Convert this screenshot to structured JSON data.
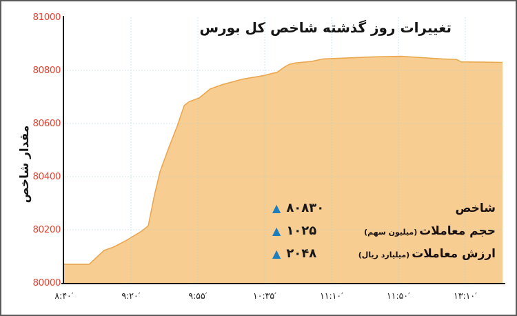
{
  "title": "تغییرات روز گذشته شاخص کل بورس",
  "y_axis": {
    "label": "مقدار شاخص",
    "ticks": [
      "81000",
      "80800",
      "80600",
      "80400",
      "80200",
      "80000"
    ]
  },
  "x_axis": {
    "ticks": [
      {
        "label": "۸:۴۰′",
        "time": "8:40",
        "pos": 0.0
      },
      {
        "label": "۹:۲۰′",
        "time": "9:20",
        "pos": 0.1525
      },
      {
        "label": "۹:۵۵′",
        "time": "9:55",
        "pos": 0.305
      },
      {
        "label": "۱۰:۳۵′",
        "time": "10:35",
        "pos": 0.4575
      },
      {
        "label": "۱۱:۱۰′",
        "time": "11:10",
        "pos": 0.6101
      },
      {
        "label": "۱۱:۵۰′",
        "time": "11:50",
        "pos": 0.7626
      },
      {
        "label": "۱۳:۱۰′",
        "time": "13:10",
        "pos": 0.9151
      }
    ]
  },
  "legend": {
    "rows": [
      {
        "label": "شاخص",
        "unit": "",
        "value": "۸۰۸۳۰",
        "value_reading": 80830,
        "direction": "up"
      },
      {
        "label": "حجم معاملات",
        "unit": "(میلیون سهم)",
        "value": "۱۰۲۵",
        "value_reading": 1025,
        "direction": "up"
      },
      {
        "label": "ارزش معاملات",
        "unit": "(میلیارد ریال)",
        "value": "۲۰۴۸",
        "value_reading": 2048,
        "direction": "up"
      }
    ]
  },
  "chart_data": {
    "type": "area",
    "title": "تغییرات روز گذشته شاخص کل بورس",
    "xlabel": "",
    "ylabel": "مقدار شاخص",
    "ylim": [
      80000,
      81000
    ],
    "yticks": [
      80000,
      80200,
      80400,
      80600,
      80800,
      81000
    ],
    "xtick_labels": [
      "۸:۴۰′",
      "۹:۲۰′",
      "۹:۵۵′",
      "۱۰:۳۵′",
      "۱۱:۱۰′",
      "۱۱:۵۰′",
      "۱۳:۱۰′"
    ],
    "xtick_times": [
      "8:40",
      "9:20",
      "9:55",
      "10:35",
      "11:10",
      "11:50",
      "13:10"
    ],
    "xtick_pos": [
      0.0,
      0.1525,
      0.305,
      0.4575,
      0.6101,
      0.7626,
      0.9151
    ],
    "grid": true,
    "legend_position": "center-right",
    "series": [
      {
        "name": "شاخص",
        "start_value": 80070,
        "peak_value": 80853,
        "final_value": 80830,
        "points": [
          [
            0.0,
            80070
          ],
          [
            0.057,
            80070
          ],
          [
            0.091,
            80122
          ],
          [
            0.113,
            80135
          ],
          [
            0.142,
            80160
          ],
          [
            0.178,
            80196
          ],
          [
            0.192,
            80215
          ],
          [
            0.206,
            80330
          ],
          [
            0.219,
            80420
          ],
          [
            0.239,
            80510
          ],
          [
            0.258,
            80590
          ],
          [
            0.274,
            80668
          ],
          [
            0.285,
            80682
          ],
          [
            0.308,
            80696
          ],
          [
            0.333,
            80730
          ],
          [
            0.36,
            80746
          ],
          [
            0.407,
            80767
          ],
          [
            0.454,
            80780
          ],
          [
            0.486,
            80793
          ],
          [
            0.502,
            80812
          ],
          [
            0.514,
            80823
          ],
          [
            0.528,
            80828
          ],
          [
            0.565,
            80834
          ],
          [
            0.591,
            80843
          ],
          [
            0.648,
            80847
          ],
          [
            0.706,
            80851
          ],
          [
            0.769,
            80853
          ],
          [
            0.816,
            80848
          ],
          [
            0.863,
            80843
          ],
          [
            0.895,
            80841
          ],
          [
            0.906,
            80832
          ],
          [
            0.958,
            80831
          ],
          [
            1.0,
            80830
          ]
        ]
      }
    ]
  },
  "colors": {
    "area_fill": "#f8cd92",
    "area_line": "#e9a850",
    "grid": "#a8d4e4",
    "y_tick_text": "#e8402e",
    "axis": "#151515",
    "arrow": "#1e7dbd",
    "title_text": "#141414"
  }
}
